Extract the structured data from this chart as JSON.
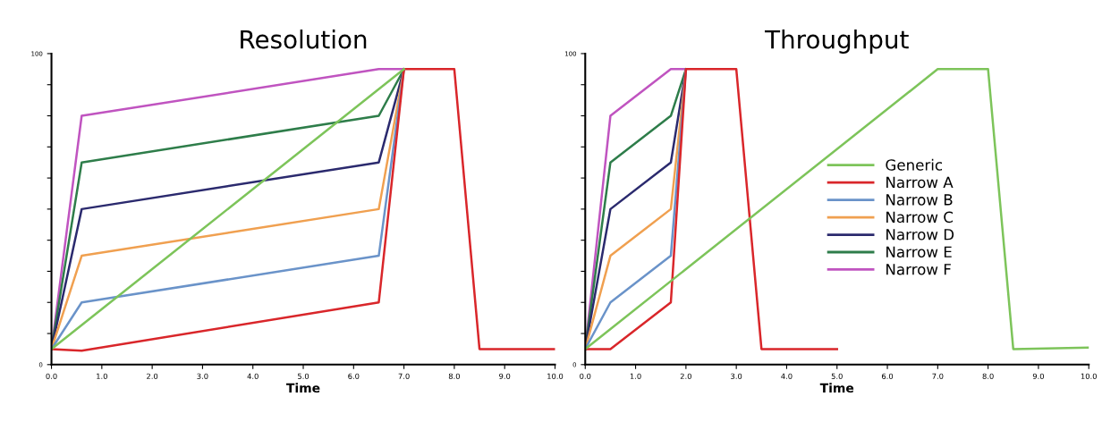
{
  "chart_data": [
    {
      "type": "line",
      "title": "Resolution",
      "xlabel": "Time",
      "xlim": [
        0,
        10
      ],
      "ylim": [
        0,
        100
      ],
      "xticks": [
        {
          "value": 0,
          "label": "0.0"
        },
        {
          "value": 1,
          "label": "1.0"
        },
        {
          "value": 2,
          "label": "2.0"
        },
        {
          "value": 3,
          "label": "3.0"
        },
        {
          "value": 4,
          "label": "4.0"
        },
        {
          "value": 5,
          "label": "5.0"
        },
        {
          "value": 6,
          "label": "6.0"
        },
        {
          "value": 7,
          "label": "7.0"
        },
        {
          "value": 8,
          "label": "8.0"
        },
        {
          "value": 9,
          "label": "9.0"
        },
        {
          "value": 10,
          "label": "10.0"
        }
      ],
      "yticks": [
        0,
        {
          "value": 10,
          "label": null
        },
        {
          "value": 20,
          "label": null
        },
        {
          "value": 30,
          "label": null
        },
        {
          "value": 40,
          "label": null
        },
        {
          "value": 50,
          "label": null
        },
        {
          "value": 60,
          "label": null
        },
        {
          "value": 70,
          "label": null
        },
        {
          "value": 80,
          "label": null
        },
        {
          "value": 90,
          "label": null
        },
        100
      ],
      "grid": false,
      "legend": false,
      "series": [
        {
          "color": "#7dc45a",
          "x": [
            0,
            7
          ],
          "values": [
            5,
            95
          ]
        },
        {
          "color": "#d9262a",
          "x": [
            0,
            0.6,
            6.5,
            7,
            8,
            8.5,
            10
          ],
          "values": [
            5,
            4.5,
            20,
            95,
            95,
            5,
            5
          ]
        },
        {
          "color": "#6a93c9",
          "x": [
            0,
            0.6,
            6.5,
            7
          ],
          "values": [
            5,
            20,
            35,
            95
          ]
        },
        {
          "color": "#f0a050",
          "x": [
            0,
            0.6,
            6.5,
            7
          ],
          "values": [
            5,
            35,
            50,
            95
          ]
        },
        {
          "color": "#2b2a6e",
          "x": [
            0,
            0.6,
            6.5,
            7
          ],
          "values": [
            5,
            50,
            65,
            95
          ]
        },
        {
          "color": "#2e7d4a",
          "x": [
            0,
            0.6,
            6.5,
            7
          ],
          "values": [
            5,
            65,
            80,
            95
          ]
        },
        {
          "color": "#c054c0",
          "x": [
            0,
            0.6,
            6.5,
            7
          ],
          "values": [
            5,
            80,
            95,
            95
          ]
        }
      ]
    },
    {
      "type": "line",
      "title": "Throughput",
      "xlabel": "Time",
      "xlim": [
        0,
        10
      ],
      "ylim": [
        0,
        100
      ],
      "xticks": [
        {
          "value": 0,
          "label": "0.0"
        },
        {
          "value": 1,
          "label": "1.0"
        },
        {
          "value": 2,
          "label": "2.0"
        },
        {
          "value": 3,
          "label": "3.0"
        },
        {
          "value": 4,
          "label": "4.0"
        },
        {
          "value": 5,
          "label": "5.0"
        },
        {
          "value": 6,
          "label": "6.0"
        },
        {
          "value": 7,
          "label": "7.0"
        },
        {
          "value": 8,
          "label": "8.0"
        },
        {
          "value": 9,
          "label": "9.0"
        },
        {
          "value": 10,
          "label": "10.0"
        }
      ],
      "yticks": [
        0,
        {
          "value": 10,
          "label": null
        },
        {
          "value": 20,
          "label": null
        },
        {
          "value": 30,
          "label": null
        },
        {
          "value": 40,
          "label": null
        },
        {
          "value": 50,
          "label": null
        },
        {
          "value": 60,
          "label": null
        },
        {
          "value": 70,
          "label": null
        },
        {
          "value": 80,
          "label": null
        },
        {
          "value": 90,
          "label": null
        },
        100
      ],
      "grid": false,
      "legend": "center right",
      "series": [
        {
          "name": "Generic",
          "color": "#7dc45a",
          "x": [
            0,
            7,
            8,
            8.5,
            10
          ],
          "values": [
            5,
            95,
            95,
            5,
            5.5
          ]
        },
        {
          "name": "Narrow A",
          "color": "#d9262a",
          "x": [
            0,
            0.5,
            1.7,
            2,
            3,
            3.5,
            5
          ],
          "values": [
            5,
            5,
            20,
            95,
            95,
            5,
            5
          ]
        },
        {
          "name": "Narrow B",
          "color": "#6a93c9",
          "x": [
            0,
            0.5,
            1.7,
            2
          ],
          "values": [
            5,
            20,
            35,
            95
          ]
        },
        {
          "name": "Narrow C",
          "color": "#f0a050",
          "x": [
            0,
            0.5,
            1.7,
            2
          ],
          "values": [
            5,
            35,
            50,
            95
          ]
        },
        {
          "name": "Narrow D",
          "color": "#2b2a6e",
          "x": [
            0,
            0.5,
            1.7,
            2
          ],
          "values": [
            5,
            50,
            65,
            95
          ]
        },
        {
          "name": "Narrow E",
          "color": "#2e7d4a",
          "x": [
            0,
            0.5,
            1.7,
            2
          ],
          "values": [
            5,
            65,
            80,
            95
          ]
        },
        {
          "name": "Narrow F",
          "color": "#c054c0",
          "x": [
            0,
            0.5,
            1.7,
            2
          ],
          "values": [
            5,
            80,
            95,
            95
          ]
        }
      ]
    }
  ]
}
